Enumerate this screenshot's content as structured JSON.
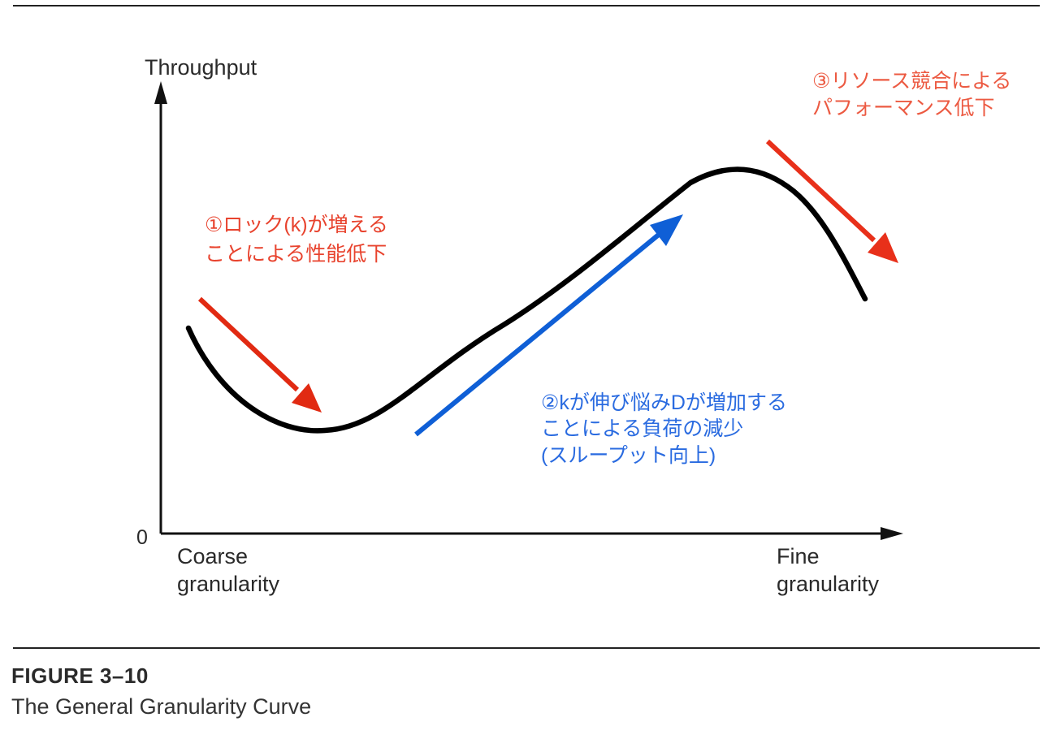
{
  "figure": {
    "label": "FIGURE 3–10",
    "title": "The General Granularity Curve"
  },
  "chart_data": {
    "type": "line",
    "title": "",
    "ylabel": "Throughput",
    "y_origin_label": "0",
    "x_start_label": [
      "Coarse",
      "granularity"
    ],
    "x_end_label": [
      "Fine",
      "granularity"
    ],
    "curve_color": "#000000",
    "annotations": [
      {
        "lines": [
          "①ロック(k)が増える",
          "ことによる性能低下"
        ],
        "color": "#e8432e"
      },
      {
        "lines": [
          "②kが伸び悩みDが増加する",
          "ことによる負荷の減少",
          "(スループット向上)"
        ],
        "color": "#2a6be0"
      },
      {
        "lines": [
          "③リソース競合による",
          "パフォーマンス低下"
        ],
        "color": "#ec5a42"
      }
    ],
    "arrow_colors": {
      "decline_1": "#e12a12",
      "rise": "#0f5fd6",
      "decline_2": "#e8301a"
    }
  }
}
